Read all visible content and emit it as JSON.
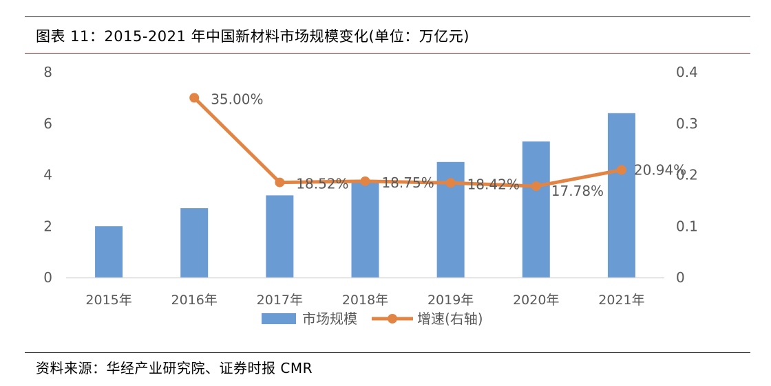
{
  "header": {
    "title": "图表 11：2015-2021 年中国新材料市场规模变化(单位：万亿元)"
  },
  "footer": {
    "source": "资料来源：华经产业研究院、证券时报 CMR"
  },
  "colors": {
    "bar": "#6a9bd3",
    "line": "#e28544",
    "axis_text": "#595959",
    "axis_line": "#d9d9d9"
  },
  "chart_data": {
    "type": "bar",
    "categories": [
      "2015年",
      "2016年",
      "2017年",
      "2018年",
      "2019年",
      "2020年",
      "2021年"
    ],
    "series": [
      {
        "name": "市场规模",
        "type": "bar",
        "axis": "left",
        "values": [
          2.0,
          2.7,
          3.2,
          3.8,
          4.5,
          5.3,
          6.4
        ]
      },
      {
        "name": "增速(右轴)",
        "type": "line",
        "axis": "right",
        "values": [
          null,
          0.35,
          0.1852,
          0.1875,
          0.1842,
          0.1778,
          0.2094
        ],
        "labels": [
          "",
          "35.00%",
          "18.52%",
          "18.75%",
          "18.42%",
          "17.78%",
          "20.94%"
        ]
      }
    ],
    "y_left": {
      "ylim": [
        0,
        8
      ],
      "ticks": [
        "0",
        "2",
        "4",
        "6",
        "8"
      ]
    },
    "y_right": {
      "ylim": [
        0,
        0.4
      ],
      "ticks": [
        "0",
        "0.1",
        "0.2",
        "0.3",
        "0.4"
      ]
    },
    "legend": {
      "position": "bottom",
      "entries": [
        "市场规模",
        "增速(右轴)"
      ]
    },
    "grid": false
  }
}
